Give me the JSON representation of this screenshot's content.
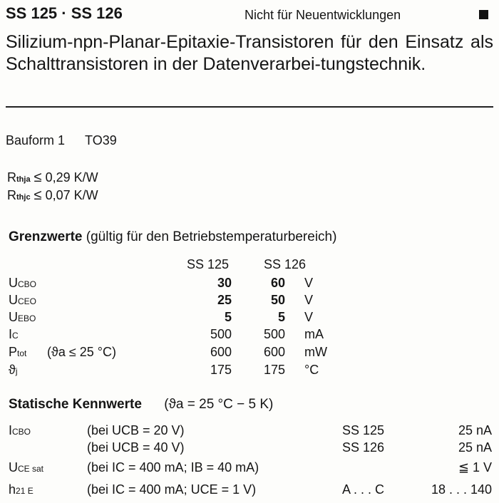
{
  "header": {
    "title": "SS 125 · SS 126",
    "note": "Nicht für Neuentwicklungen",
    "description": "Silizium-npn-Planar-Epitaxie-Transistoren für den Einsatz als Schalttransistoren in der Datenverarbei-tungstechnik."
  },
  "bauform": {
    "label": "Bauform 1",
    "package": "TO39"
  },
  "thermal": [
    {
      "symbol": "R",
      "sub": "thja",
      "rel": "≤",
      "value": "0,29 K/W"
    },
    {
      "symbol": "R",
      "sub": "thjc",
      "rel": "≤",
      "value": "0,07 K/W"
    }
  ],
  "grenzwerte": {
    "title": "Grenzwerte",
    "subtitle": "(gültig für den Betriebstemperaturbereich)",
    "columns": [
      "SS 125",
      "SS 126"
    ],
    "rows": [
      {
        "sym": "U",
        "sub": "CBO",
        "cond": "",
        "v1": "30",
        "v2": "60",
        "unit": "V"
      },
      {
        "sym": "U",
        "sub": "CEO",
        "cond": "",
        "v1": "25",
        "v2": "50",
        "unit": "V"
      },
      {
        "sym": "U",
        "sub": "EBO",
        "cond": "",
        "v1": "5",
        "v2": "5",
        "unit": "V"
      },
      {
        "sym": "I",
        "sub": "C",
        "cond": "",
        "v1": "500",
        "v2": "500",
        "unit": "mA"
      },
      {
        "sym": "P",
        "sub": "tot",
        "cond": "(ϑa ≤ 25 °C)",
        "v1": "600",
        "v2": "600",
        "unit": "mW"
      },
      {
        "sym": "ϑ",
        "sub": "j",
        "cond": "",
        "v1": "175",
        "v2": "175",
        "unit": "°C"
      }
    ]
  },
  "kennwerte": {
    "title": "Statische Kennwerte",
    "subtitle": "(ϑa = 25 °C − 5 K)",
    "rows": [
      {
        "sym": "I",
        "sub": "CBO",
        "cond": "(bei UCB = 20 V)",
        "type": "SS 125",
        "value": "25 nA"
      },
      {
        "sym": "",
        "sub": "",
        "cond": "(bei UCB = 40 V)",
        "type": "SS 126",
        "value": "25 nA"
      },
      {
        "sym": "U",
        "sub": "CE sat",
        "cond": "(bei IC = 400 mA; IB = 40 mA)",
        "type": "",
        "value": "≦ 1 V"
      },
      {
        "sym": "h",
        "sub": "21 E",
        "cond": "(bei IC = 400 mA; UCE = 1 V)",
        "type": "A . . . C",
        "value": "18 . . . 140"
      }
    ]
  }
}
